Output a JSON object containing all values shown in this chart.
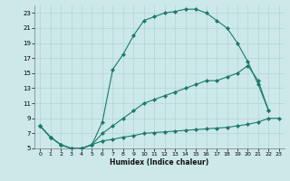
{
  "xlabel": "Humidex (Indice chaleur)",
  "line_color": "#1a7a6e",
  "bg_color": "#cce8e8",
  "grid_color": "#b8d8d8",
  "xlim": [
    -0.5,
    23.5
  ],
  "ylim": [
    5,
    24
  ],
  "xticks": [
    0,
    1,
    2,
    3,
    4,
    5,
    6,
    7,
    8,
    9,
    10,
    11,
    12,
    13,
    14,
    15,
    16,
    17,
    18,
    19,
    20,
    21,
    22,
    23
  ],
  "yticks": [
    5,
    7,
    9,
    11,
    13,
    15,
    17,
    19,
    21,
    23
  ],
  "line1_x": [
    0,
    1,
    2,
    3,
    4,
    5,
    6,
    7,
    8,
    9,
    10,
    11,
    12,
    13,
    14,
    15,
    16,
    17,
    18,
    19,
    20,
    21,
    22
  ],
  "line1_y": [
    8,
    6.5,
    5.5,
    5,
    5,
    5.5,
    8.5,
    15.5,
    17.5,
    20,
    22,
    22.5,
    23,
    23.2,
    23.5,
    23.5,
    23,
    22,
    21,
    19,
    16.5,
    13.5,
    10
  ],
  "line2_x": [
    0,
    1,
    2,
    3,
    4,
    5,
    6,
    7,
    8,
    9,
    10,
    11,
    12,
    13,
    14,
    15,
    16,
    17,
    18,
    19,
    20,
    21,
    22
  ],
  "line2_y": [
    8,
    6.5,
    5.5,
    5,
    5,
    5.5,
    7,
    8,
    9,
    10,
    11,
    11.5,
    12,
    12.5,
    13,
    13.5,
    14,
    14,
    14.5,
    15,
    16,
    14,
    10
  ],
  "line3_x": [
    0,
    1,
    2,
    3,
    4,
    5,
    6,
    7,
    8,
    9,
    10,
    11,
    12,
    13,
    14,
    15,
    16,
    17,
    18,
    19,
    20,
    21,
    22,
    23
  ],
  "line3_y": [
    8,
    6.5,
    5.5,
    5,
    5,
    5.5,
    6,
    6.2,
    6.5,
    6.7,
    7,
    7.1,
    7.2,
    7.3,
    7.4,
    7.5,
    7.6,
    7.7,
    7.8,
    8,
    8.2,
    8.5,
    9,
    9
  ]
}
